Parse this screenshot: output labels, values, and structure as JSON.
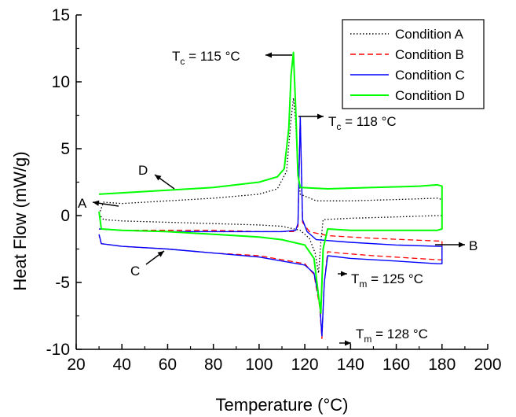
{
  "chart_data": {
    "type": "line",
    "title": "",
    "xlabel": "Temperature (°C)",
    "ylabel": "Heat Flow  (mW/g)",
    "xlim": [
      20,
      200
    ],
    "ylim": [
      -10,
      15
    ],
    "xticks": [
      20,
      40,
      60,
      80,
      100,
      120,
      140,
      160,
      180,
      200
    ],
    "yticks": [
      -10,
      -5,
      0,
      5,
      10,
      15
    ],
    "grid": false,
    "legend_position": "top-right",
    "series": [
      {
        "name": "Condition A",
        "color": "#000000",
        "dash": "dotted",
        "segments": [
          [
            [
              30,
              0.1
            ],
            [
              32,
              1.0
            ],
            [
              40,
              0.9
            ],
            [
              60,
              1.1
            ],
            [
              80,
              1.3
            ],
            [
              100,
              1.6
            ],
            [
              108,
              2.0
            ],
            [
              112,
              3.3
            ],
            [
              114,
              7.2
            ],
            [
              115,
              8.8
            ],
            [
              116,
              7.0
            ],
            [
              117,
              3.2
            ],
            [
              118,
              1.6
            ],
            [
              125,
              1.1
            ],
            [
              140,
              1.1
            ],
            [
              160,
              1.2
            ],
            [
              178,
              1.3
            ],
            [
              180,
              1.2
            ],
            [
              180,
              0.0
            ],
            [
              178,
              0.0
            ],
            [
              160,
              -0.1
            ],
            [
              140,
              -0.2
            ],
            [
              128,
              -0.3
            ],
            [
              127,
              -2.0
            ],
            [
              126,
              -4.3
            ],
            [
              124.5,
              -2.8
            ],
            [
              122,
              -1.7
            ],
            [
              118,
              -1.1
            ],
            [
              110,
              -0.8
            ],
            [
              100,
              -0.7
            ],
            [
              80,
              -0.6
            ],
            [
              60,
              -0.5
            ],
            [
              40,
              -0.4
            ],
            [
              32,
              -0.3
            ],
            [
              30,
              0.1
            ]
          ]
        ]
      },
      {
        "name": "Condition B",
        "color": "#ff0000",
        "dash": "dashed",
        "segments": [
          [
            [
              30,
              -1.0
            ],
            [
              40,
              -1.1
            ],
            [
              60,
              -1.1
            ],
            [
              80,
              -1.1
            ],
            [
              100,
              -1.2
            ],
            [
              110,
              -1.2
            ],
            [
              115,
              -1.2
            ],
            [
              117,
              -0.8
            ],
            [
              118,
              7.4
            ],
            [
              119,
              -0.5
            ],
            [
              122,
              -1.2
            ],
            [
              130,
              -1.5
            ],
            [
              150,
              -1.7
            ],
            [
              178,
              -1.9
            ],
            [
              180,
              -1.9
            ],
            [
              180,
              -3.3
            ],
            [
              178,
              -3.3
            ],
            [
              150,
              -3.0
            ],
            [
              135,
              -2.8
            ],
            [
              130,
              -2.7
            ],
            [
              128.5,
              -5.0
            ],
            [
              127.5,
              -9.2
            ],
            [
              126.5,
              -6.8
            ],
            [
              124,
              -4.4
            ],
            [
              120,
              -3.6
            ],
            [
              100,
              -3.0
            ],
            [
              80,
              -2.8
            ],
            [
              60,
              -2.5
            ],
            [
              40,
              -2.3
            ],
            [
              31,
              -2.1
            ],
            [
              30,
              -1.5
            ]
          ]
        ]
      },
      {
        "name": "Condition C",
        "color": "#0000ff",
        "dash": "solid",
        "segments": [
          [
            [
              30,
              -1.0
            ],
            [
              40,
              -1.1
            ],
            [
              60,
              -1.2
            ],
            [
              80,
              -1.2
            ],
            [
              100,
              -1.2
            ],
            [
              110,
              -1.2
            ],
            [
              116,
              -1.1
            ],
            [
              117,
              -0.6
            ],
            [
              118,
              7.4
            ],
            [
              119,
              -0.3
            ],
            [
              121,
              -1.2
            ],
            [
              125,
              -1.8
            ],
            [
              140,
              -2.0
            ],
            [
              160,
              -2.2
            ],
            [
              178,
              -2.3
            ],
            [
              180,
              -2.3
            ],
            [
              180,
              -3.6
            ],
            [
              178,
              -3.6
            ],
            [
              160,
              -3.4
            ],
            [
              140,
              -3.2
            ],
            [
              130,
              -3.0
            ],
            [
              128.5,
              -5.0
            ],
            [
              127.5,
              -9.0
            ],
            [
              126.5,
              -6.5
            ],
            [
              124,
              -4.3
            ],
            [
              120,
              -3.7
            ],
            [
              100,
              -3.1
            ],
            [
              80,
              -2.8
            ],
            [
              60,
              -2.5
            ],
            [
              40,
              -2.3
            ],
            [
              31,
              -2.1
            ],
            [
              30,
              -1.4
            ]
          ]
        ]
      },
      {
        "name": "Condition D",
        "color": "#00ff00",
        "dash": "solid",
        "segments": [
          [
            [
              30,
              1.6
            ],
            [
              40,
              1.7
            ],
            [
              60,
              1.9
            ],
            [
              80,
              2.1
            ],
            [
              100,
              2.5
            ],
            [
              108,
              2.9
            ],
            [
              111,
              3.5
            ],
            [
              113,
              6.5
            ],
            [
              114,
              10.5
            ],
            [
              115,
              12.2
            ],
            [
              116,
              8.0
            ],
            [
              117,
              3.0
            ],
            [
              118,
              2.1
            ],
            [
              130,
              2.0
            ],
            [
              150,
              2.1
            ],
            [
              170,
              2.2
            ],
            [
              178,
              2.3
            ],
            [
              180,
              2.2
            ],
            [
              180,
              -1.0
            ],
            [
              178,
              -1.1
            ],
            [
              160,
              -1.1
            ],
            [
              140,
              -1.1
            ],
            [
              130,
              -1.0
            ],
            [
              128,
              -2.5
            ],
            [
              127,
              -7.3
            ],
            [
              126,
              -6.0
            ],
            [
              124,
              -3.2
            ],
            [
              120,
              -2.2
            ],
            [
              110,
              -1.8
            ],
            [
              100,
              -1.6
            ],
            [
              80,
              -1.4
            ],
            [
              60,
              -1.2
            ],
            [
              40,
              -1.1
            ],
            [
              31,
              -1.0
            ],
            [
              30,
              0.3
            ]
          ]
        ]
      }
    ],
    "annotations": [
      {
        "id": "tc115",
        "main": "T",
        "sub": "c",
        "rest": " = 115 °C"
      },
      {
        "id": "tc118",
        "main": "T",
        "sub": "c",
        "rest": " = 118 °C"
      },
      {
        "id": "tm125",
        "main": "T",
        "sub": "m",
        "rest": " = 125 °C"
      },
      {
        "id": "tm128",
        "main": "T",
        "sub": "m",
        "rest": " = 128 °C"
      },
      {
        "id": "label-a",
        "text": "A"
      },
      {
        "id": "label-b",
        "text": "B"
      },
      {
        "id": "label-c",
        "text": "C"
      },
      {
        "id": "label-d",
        "text": "D"
      }
    ]
  }
}
